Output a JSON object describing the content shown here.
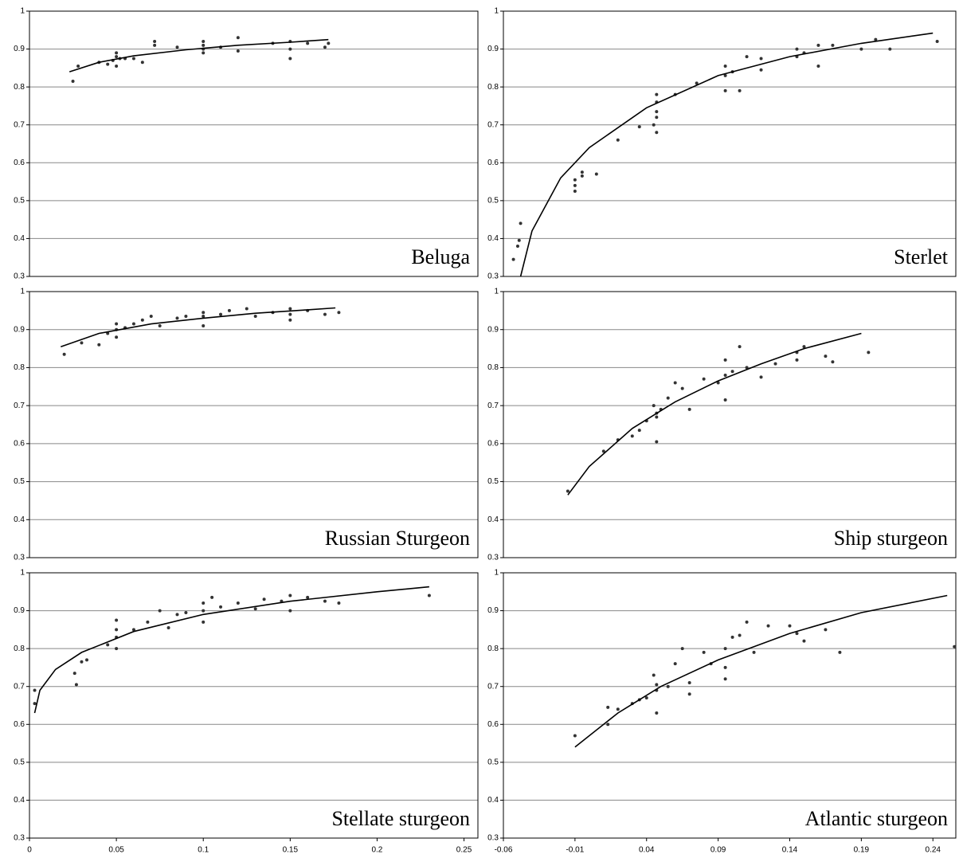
{
  "chart_data": [
    {
      "type": "scatter",
      "title": "Beluga",
      "xlim": [
        0,
        0.258
      ],
      "ylim": [
        0.3,
        1
      ],
      "yticks": [
        0.3,
        0.4,
        0.5,
        0.6,
        0.7,
        0.8,
        0.9,
        1
      ],
      "grid": true,
      "series": [
        {
          "mode": "markers",
          "color": "#333333",
          "x": [
            0.025,
            0.028,
            0.04,
            0.045,
            0.048,
            0.05,
            0.05,
            0.05,
            0.052,
            0.055,
            0.06,
            0.065,
            0.072,
            0.072,
            0.085,
            0.1,
            0.1,
            0.1,
            0.1,
            0.11,
            0.12,
            0.12,
            0.14,
            0.15,
            0.15,
            0.15,
            0.16,
            0.17,
            0.172
          ],
          "values": [
            0.815,
            0.855,
            0.865,
            0.86,
            0.87,
            0.88,
            0.855,
            0.89,
            0.875,
            0.875,
            0.875,
            0.865,
            0.91,
            0.92,
            0.905,
            0.9,
            0.91,
            0.92,
            0.89,
            0.905,
            0.93,
            0.895,
            0.915,
            0.92,
            0.875,
            0.9,
            0.915,
            0.905,
            0.915
          ]
        },
        {
          "mode": "line",
          "color": "#000000",
          "x": [
            0.023,
            0.04,
            0.06,
            0.09,
            0.12,
            0.15,
            0.172
          ],
          "values": [
            0.84,
            0.865,
            0.882,
            0.898,
            0.91,
            0.918,
            0.925
          ]
        }
      ]
    },
    {
      "type": "scatter",
      "title": "Sterlet",
      "xlim": [
        -0.06,
        0.256
      ],
      "ylim": [
        0.3,
        1
      ],
      "yticks": [
        0.3,
        0.4,
        0.5,
        0.6,
        0.7,
        0.8,
        0.9,
        1
      ],
      "grid": true,
      "series": [
        {
          "mode": "markers",
          "color": "#333333",
          "x": [
            -0.053,
            -0.05,
            -0.049,
            -0.048,
            -0.01,
            -0.01,
            -0.01,
            -0.005,
            -0.005,
            0.005,
            0.02,
            0.035,
            0.045,
            0.047,
            0.047,
            0.047,
            0.047,
            0.047,
            0.06,
            0.075,
            0.095,
            0.095,
            0.095,
            0.1,
            0.105,
            0.11,
            0.12,
            0.12,
            0.145,
            0.145,
            0.15,
            0.16,
            0.16,
            0.17,
            0.19,
            0.2,
            0.21,
            0.243
          ],
          "values": [
            0.345,
            0.38,
            0.395,
            0.44,
            0.555,
            0.525,
            0.54,
            0.575,
            0.565,
            0.57,
            0.66,
            0.695,
            0.7,
            0.68,
            0.72,
            0.76,
            0.78,
            0.735,
            0.78,
            0.81,
            0.79,
            0.83,
            0.855,
            0.84,
            0.79,
            0.88,
            0.845,
            0.875,
            0.9,
            0.88,
            0.89,
            0.855,
            0.91,
            0.91,
            0.9,
            0.925,
            0.9,
            0.92
          ]
        },
        {
          "mode": "line",
          "color": "#000000",
          "x": [
            -0.048,
            -0.04,
            -0.02,
            0.0,
            0.04,
            0.09,
            0.14,
            0.19,
            0.24
          ],
          "values": [
            0.3,
            0.42,
            0.56,
            0.64,
            0.745,
            0.83,
            0.88,
            0.915,
            0.942
          ]
        }
      ]
    },
    {
      "type": "scatter",
      "title": "Russian Sturgeon",
      "xlim": [
        0,
        0.258
      ],
      "ylim": [
        0.3,
        1
      ],
      "yticks": [
        0.3,
        0.4,
        0.5,
        0.6,
        0.7,
        0.8,
        0.9,
        1
      ],
      "grid": true,
      "series": [
        {
          "mode": "markers",
          "color": "#333333",
          "x": [
            0.02,
            0.03,
            0.04,
            0.045,
            0.05,
            0.05,
            0.05,
            0.055,
            0.06,
            0.065,
            0.07,
            0.075,
            0.085,
            0.09,
            0.1,
            0.1,
            0.1,
            0.11,
            0.115,
            0.125,
            0.13,
            0.14,
            0.15,
            0.15,
            0.15,
            0.16,
            0.17,
            0.178
          ],
          "values": [
            0.835,
            0.865,
            0.86,
            0.89,
            0.9,
            0.88,
            0.915,
            0.905,
            0.915,
            0.925,
            0.935,
            0.91,
            0.93,
            0.935,
            0.935,
            0.91,
            0.945,
            0.94,
            0.95,
            0.955,
            0.935,
            0.945,
            0.955,
            0.94,
            0.925,
            0.95,
            0.94,
            0.945
          ]
        },
        {
          "mode": "line",
          "color": "#000000",
          "x": [
            0.018,
            0.04,
            0.07,
            0.1,
            0.13,
            0.16,
            0.176
          ],
          "values": [
            0.855,
            0.89,
            0.915,
            0.93,
            0.943,
            0.952,
            0.957
          ]
        }
      ]
    },
    {
      "type": "scatter",
      "title": "Ship sturgeon",
      "xlim": [
        -0.06,
        0.256
      ],
      "ylim": [
        0.3,
        1
      ],
      "yticks": [
        0.3,
        0.4,
        0.5,
        0.6,
        0.7,
        0.8,
        0.9,
        1
      ],
      "grid": true,
      "series": [
        {
          "mode": "markers",
          "color": "#333333",
          "x": [
            -0.015,
            0.01,
            0.02,
            0.03,
            0.035,
            0.04,
            0.045,
            0.047,
            0.047,
            0.047,
            0.05,
            0.055,
            0.06,
            0.065,
            0.07,
            0.08,
            0.09,
            0.095,
            0.095,
            0.095,
            0.1,
            0.105,
            0.11,
            0.12,
            0.13,
            0.145,
            0.145,
            0.15,
            0.165,
            0.17,
            0.195
          ],
          "values": [
            0.475,
            0.58,
            0.61,
            0.62,
            0.635,
            0.66,
            0.7,
            0.67,
            0.605,
            0.68,
            0.69,
            0.72,
            0.76,
            0.745,
            0.69,
            0.77,
            0.76,
            0.78,
            0.82,
            0.715,
            0.79,
            0.855,
            0.8,
            0.775,
            0.81,
            0.84,
            0.82,
            0.855,
            0.83,
            0.815,
            0.84
          ]
        },
        {
          "mode": "line",
          "color": "#000000",
          "x": [
            -0.015,
            0.0,
            0.03,
            0.06,
            0.09,
            0.12,
            0.15,
            0.19
          ],
          "values": [
            0.465,
            0.54,
            0.64,
            0.71,
            0.765,
            0.81,
            0.85,
            0.89
          ]
        }
      ]
    },
    {
      "type": "scatter",
      "title": "Stellate sturgeon",
      "xlim": [
        0,
        0.258
      ],
      "ylim": [
        0.3,
        1
      ],
      "yticks": [
        0.3,
        0.4,
        0.5,
        0.6,
        0.7,
        0.8,
        0.9,
        1
      ],
      "grid": true,
      "xticks": [
        0,
        0.05,
        0.1,
        0.15,
        0.2,
        0.25
      ],
      "series": [
        {
          "mode": "markers",
          "color": "#333333",
          "x": [
            0.003,
            0.003,
            0.026,
            0.027,
            0.03,
            0.033,
            0.045,
            0.05,
            0.05,
            0.05,
            0.05,
            0.06,
            0.068,
            0.075,
            0.08,
            0.085,
            0.09,
            0.1,
            0.1,
            0.1,
            0.105,
            0.11,
            0.12,
            0.13,
            0.135,
            0.145,
            0.15,
            0.15,
            0.16,
            0.17,
            0.178,
            0.23
          ],
          "values": [
            0.69,
            0.655,
            0.735,
            0.705,
            0.765,
            0.77,
            0.81,
            0.8,
            0.83,
            0.85,
            0.875,
            0.85,
            0.87,
            0.9,
            0.855,
            0.89,
            0.895,
            0.87,
            0.9,
            0.92,
            0.935,
            0.91,
            0.92,
            0.905,
            0.93,
            0.925,
            0.9,
            0.94,
            0.935,
            0.925,
            0.92,
            0.94
          ]
        },
        {
          "mode": "line",
          "color": "#000000",
          "x": [
            0.003,
            0.006,
            0.015,
            0.03,
            0.06,
            0.1,
            0.15,
            0.2,
            0.23
          ],
          "values": [
            0.63,
            0.69,
            0.745,
            0.79,
            0.845,
            0.89,
            0.925,
            0.95,
            0.963
          ]
        }
      ]
    },
    {
      "type": "scatter",
      "title": "Atlantic sturgeon",
      "xlim": [
        -0.06,
        0.256
      ],
      "ylim": [
        0.3,
        1
      ],
      "yticks": [
        0.3,
        0.4,
        0.5,
        0.6,
        0.7,
        0.8,
        0.9,
        1
      ],
      "grid": true,
      "xticks": [
        -0.06,
        -0.01,
        0.04,
        0.09,
        0.14,
        0.19,
        0.24
      ],
      "series": [
        {
          "mode": "markers",
          "color": "#333333",
          "x": [
            -0.01,
            0.013,
            0.013,
            0.02,
            0.03,
            0.035,
            0.04,
            0.045,
            0.047,
            0.047,
            0.047,
            0.055,
            0.06,
            0.065,
            0.07,
            0.07,
            0.08,
            0.085,
            0.095,
            0.095,
            0.095,
            0.1,
            0.105,
            0.11,
            0.115,
            0.125,
            0.14,
            0.145,
            0.15,
            0.165,
            0.175,
            0.255
          ],
          "values": [
            0.57,
            0.6,
            0.645,
            0.64,
            0.655,
            0.665,
            0.67,
            0.73,
            0.63,
            0.69,
            0.705,
            0.7,
            0.76,
            0.8,
            0.71,
            0.68,
            0.79,
            0.76,
            0.8,
            0.72,
            0.75,
            0.83,
            0.835,
            0.87,
            0.79,
            0.86,
            0.86,
            0.84,
            0.82,
            0.85,
            0.79,
            0.805
          ]
        },
        {
          "mode": "line",
          "color": "#000000",
          "x": [
            -0.01,
            0.02,
            0.05,
            0.09,
            0.14,
            0.19,
            0.25
          ],
          "values": [
            0.54,
            0.63,
            0.7,
            0.77,
            0.84,
            0.895,
            0.94
          ]
        }
      ]
    }
  ]
}
